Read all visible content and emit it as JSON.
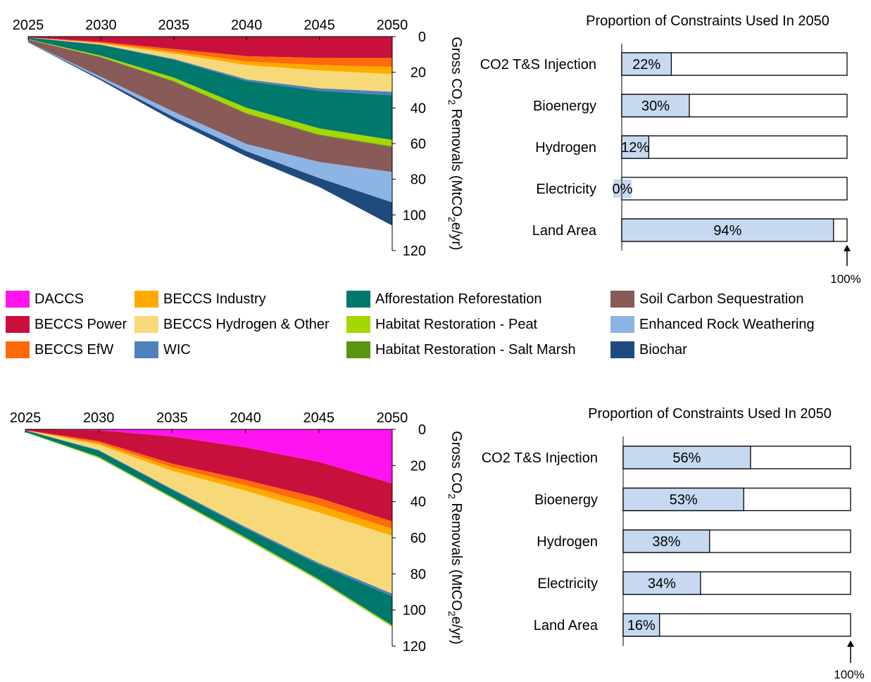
{
  "chart_data": [
    {
      "type": "area",
      "panel": "top",
      "x": [
        2025,
        2030,
        2035,
        2040,
        2045,
        2050
      ],
      "xlim": [
        2025,
        2050
      ],
      "ylim": [
        0,
        120
      ],
      "y_inverted": true,
      "y_ticks": [
        0,
        20,
        40,
        60,
        80,
        100,
        120
      ],
      "x_ticks": [
        2025,
        2030,
        2035,
        2040,
        2045,
        2050
      ],
      "ylabel_prefix": "Gross CO",
      "ylabel_sub": "2",
      "ylabel_mid": " Removals (MtCO",
      "ylabel_sub2": "2",
      "ylabel_suffix": "e/yr)",
      "series": [
        {
          "name": "DACCS",
          "values": [
            0,
            0,
            0,
            0,
            0,
            0
          ]
        },
        {
          "name": "BECCS Power",
          "values": [
            0.5,
            3,
            7,
            11,
            12,
            12
          ]
        },
        {
          "name": "BECCS EfW",
          "values": [
            0,
            0.5,
            1.5,
            3,
            4,
            5
          ]
        },
        {
          "name": "BECCS Industry",
          "values": [
            0,
            0.5,
            1,
            2,
            3,
            4
          ]
        },
        {
          "name": "BECCS Hydrogen & Other",
          "values": [
            0,
            0.5,
            3,
            8,
            10,
            10
          ]
        },
        {
          "name": "WIC",
          "values": [
            0,
            0.2,
            0.5,
            1,
            1.5,
            2
          ]
        },
        {
          "name": "Afforestation Reforestation",
          "values": [
            1,
            6,
            10,
            15,
            21,
            25
          ]
        },
        {
          "name": "Habitat Restoration - Peat",
          "values": [
            0.2,
            0.8,
            2,
            3,
            3.5,
            3.5
          ]
        },
        {
          "name": "Habitat Restoration - Salt Marsh",
          "values": [
            0,
            0.1,
            0.2,
            0.3,
            0.4,
            0.5
          ]
        },
        {
          "name": "Soil Carbon Sequestration",
          "values": [
            1.3,
            11,
            17,
            17,
            15,
            14
          ]
        },
        {
          "name": "Enhanced Rock Weathering",
          "values": [
            0,
            1.2,
            3,
            4,
            9,
            17
          ]
        },
        {
          "name": "Biochar",
          "values": [
            0.2,
            0.8,
            2,
            3,
            5,
            13
          ]
        }
      ]
    },
    {
      "type": "bar",
      "panel": "top",
      "title": "Proportion of Constraints Used In 2050",
      "categories": [
        "CO2 T&S Injection",
        "Bioenergy",
        "Hydrogen",
        "Electricity",
        "Land Area"
      ],
      "values": [
        22,
        30,
        12,
        0,
        94
      ],
      "labels": [
        "22%",
        "30%",
        "12%",
        "0%",
        "94%"
      ],
      "xlim": [
        0,
        100
      ],
      "max_label": "100%"
    },
    {
      "type": "area",
      "panel": "bottom",
      "x": [
        2025,
        2030,
        2035,
        2040,
        2045,
        2050
      ],
      "xlim": [
        2025,
        2050
      ],
      "ylim": [
        0,
        120
      ],
      "y_inverted": true,
      "y_ticks": [
        0,
        20,
        40,
        60,
        80,
        100,
        120
      ],
      "x_ticks": [
        2025,
        2030,
        2035,
        2040,
        2045,
        2050
      ],
      "ylabel_prefix": "Gross CO",
      "ylabel_sub": "2",
      "ylabel_mid": " Removals (MtCO",
      "ylabel_sub2": "2",
      "ylabel_suffix": "e/yr)",
      "series": [
        {
          "name": "DACCS",
          "values": [
            0,
            0.5,
            4,
            10,
            18,
            30
          ]
        },
        {
          "name": "BECCS Power",
          "values": [
            0.5,
            6,
            15,
            18,
            20,
            21
          ]
        },
        {
          "name": "BECCS EfW",
          "values": [
            0,
            1,
            2,
            3,
            4,
            4
          ]
        },
        {
          "name": "BECCS Industry",
          "values": [
            0,
            1,
            2,
            3,
            4,
            4
          ]
        },
        {
          "name": "BECCS Hydrogen & Other",
          "values": [
            0,
            3,
            10,
            20,
            28,
            32
          ]
        },
        {
          "name": "WIC",
          "values": [
            0,
            0.3,
            0.5,
            0.8,
            1,
            1.5
          ]
        },
        {
          "name": "Afforestation Reforestation",
          "values": [
            1,
            3.4,
            4,
            5,
            8,
            16
          ]
        },
        {
          "name": "Habitat Restoration - Peat",
          "values": [
            0.2,
            0.5,
            0.6,
            0.8,
            0.8,
            0.8
          ]
        },
        {
          "name": "Habitat Restoration - Salt Marsh",
          "values": [
            0,
            0.1,
            0.1,
            0.1,
            0.1,
            0.1
          ]
        },
        {
          "name": "Soil Carbon Sequestration",
          "values": [
            0,
            0,
            0,
            0,
            0,
            0
          ]
        },
        {
          "name": "Enhanced Rock Weathering",
          "values": [
            0,
            0,
            0,
            0,
            0,
            0
          ]
        },
        {
          "name": "Biochar",
          "values": [
            0,
            0,
            0,
            0,
            0,
            0
          ]
        }
      ]
    },
    {
      "type": "bar",
      "panel": "bottom",
      "title": "Proportion of Constraints Used In 2050",
      "categories": [
        "CO2 T&S Injection",
        "Bioenergy",
        "Hydrogen",
        "Electricity",
        "Land Area"
      ],
      "values": [
        56,
        53,
        38,
        34,
        16
      ],
      "labels": [
        "56%",
        "53%",
        "38%",
        "34%",
        "16%"
      ],
      "xlim": [
        0,
        100
      ],
      "max_label": "100%"
    }
  ],
  "legend": [
    {
      "name": "DACCS",
      "color": "#FF14F0"
    },
    {
      "name": "BECCS Power",
      "color": "#C8103C"
    },
    {
      "name": "BECCS EfW",
      "color": "#FF6A0A"
    },
    {
      "name": "BECCS Industry",
      "color": "#FFAA00"
    },
    {
      "name": "BECCS Hydrogen & Other",
      "color": "#F7D979"
    },
    {
      "name": "WIC",
      "color": "#4F81BD"
    },
    {
      "name": "Afforestation Reforestation",
      "color": "#00786C"
    },
    {
      "name": "Habitat Restoration - Peat",
      "color": "#A5D800"
    },
    {
      "name": "Habitat Restoration - Salt Marsh",
      "color": "#5A9410"
    },
    {
      "name": "Soil Carbon Sequestration",
      "color": "#885A58"
    },
    {
      "name": "Enhanced Rock Weathering",
      "color": "#8EB4E3"
    },
    {
      "name": "Biochar",
      "color": "#1F4A7E"
    }
  ],
  "bar_fill_color": "#C6D9F1"
}
